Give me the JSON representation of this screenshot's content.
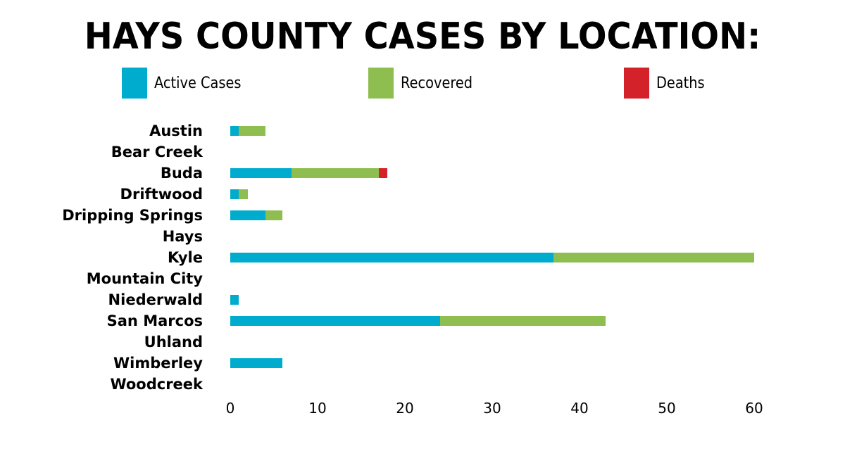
{
  "title": "HAYS COUNTY CASES BY LOCATION:",
  "legend": [
    {
      "label": "Active Cases",
      "color": "#00acce"
    },
    {
      "label": "Recovered",
      "color": "#8fbe50"
    },
    {
      "label": "Deaths",
      "color": "#d3222a"
    }
  ],
  "ticks": [
    "0",
    "10",
    "20",
    "30",
    "40",
    "50",
    "60"
  ],
  "chart_data": {
    "type": "bar",
    "orientation": "horizontal",
    "stacked": true,
    "title": "HAYS COUNTY CASES BY LOCATION:",
    "xlabel": "",
    "ylabel": "",
    "xlim": [
      0,
      60
    ],
    "xticks": [
      0,
      10,
      20,
      30,
      40,
      50,
      60
    ],
    "grid": false,
    "legend_position": "top",
    "categories": [
      "Austin",
      "Bear Creek",
      "Buda",
      "Driftwood",
      "Dripping Springs",
      "Hays",
      "Kyle",
      "Mountain City",
      "Niederwald",
      "San Marcos",
      "Uhland",
      "Wimberley",
      "Woodcreek"
    ],
    "series": [
      {
        "name": "Active Cases",
        "color": "#00acce",
        "values": [
          1,
          0,
          7,
          1,
          4,
          0,
          37,
          0,
          1,
          24,
          0,
          6,
          0
        ]
      },
      {
        "name": "Recovered",
        "color": "#8fbe50",
        "values": [
          3,
          0,
          10,
          1,
          2,
          0,
          23,
          0,
          0,
          19,
          0,
          0,
          0
        ]
      },
      {
        "name": "Deaths",
        "color": "#d3222a",
        "values": [
          0,
          0,
          1,
          0,
          0,
          0,
          0,
          0,
          0,
          0,
          0,
          0,
          0
        ]
      }
    ]
  }
}
